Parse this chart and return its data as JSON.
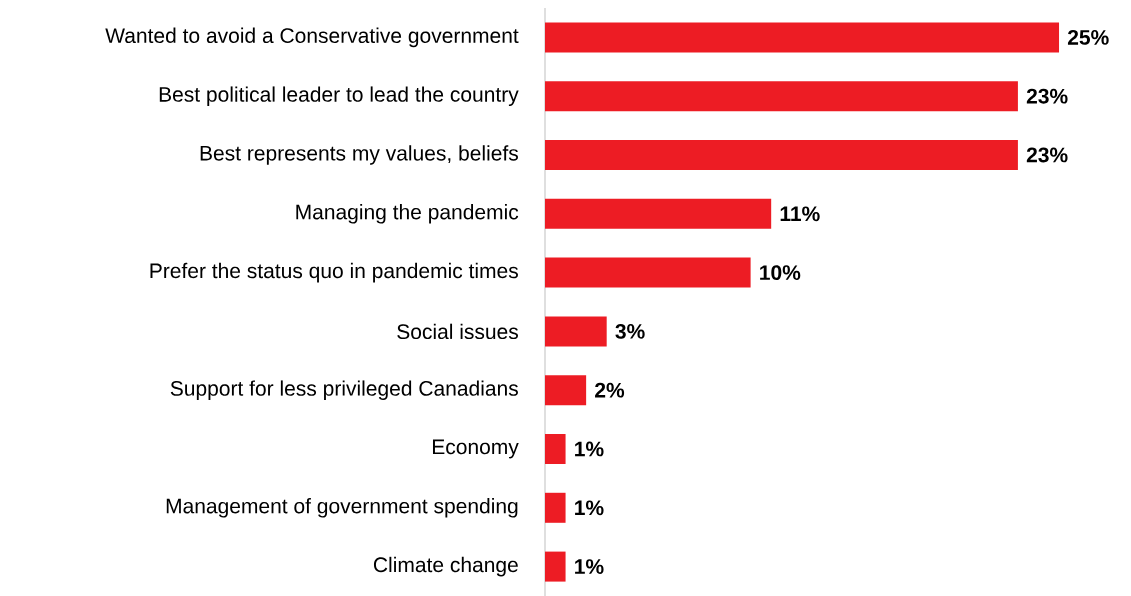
{
  "chart_data": {
    "type": "bar",
    "orientation": "horizontal",
    "color": "#ed1c24",
    "categories": [
      "Wanted to avoid a Conservative government",
      "Best political leader to lead the country",
      "Best represents my values, beliefs",
      "Managing the pandemic",
      "Prefer the status quo in pandemic times",
      "Social issues",
      "Support for less privileged Canadians",
      "Economy",
      "Management of government spending",
      "Climate change"
    ],
    "values": [
      25,
      23,
      23,
      11,
      10,
      3,
      2,
      1,
      1,
      1
    ],
    "value_labels": [
      "25%",
      "23%",
      "23%",
      "11%",
      "10%",
      "3%",
      "2%",
      "1%",
      "1%",
      "1%"
    ]
  }
}
